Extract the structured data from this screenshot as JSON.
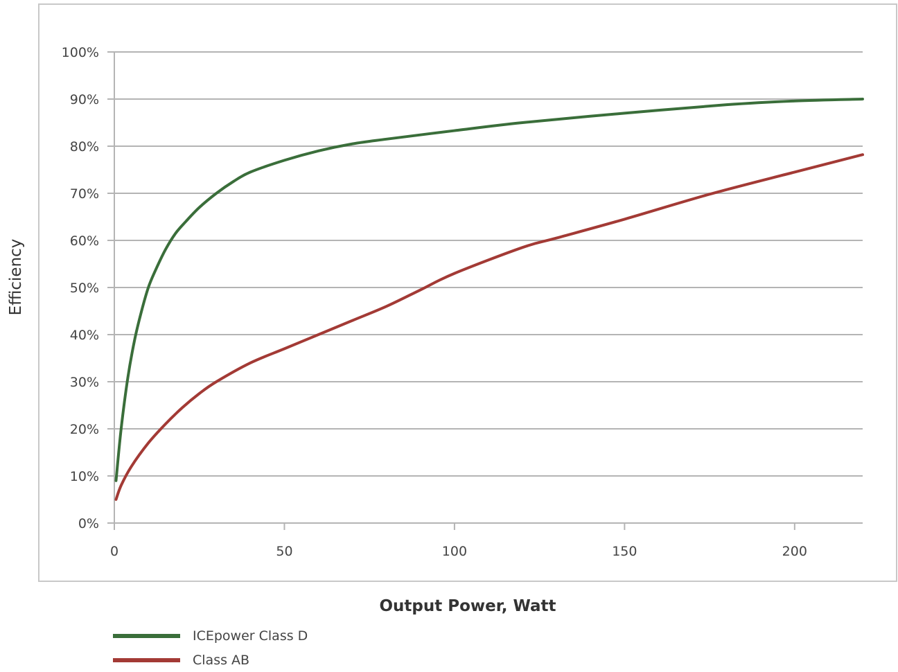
{
  "chart_data": {
    "type": "line",
    "xlabel": "Output Power, Watt",
    "ylabel": "Efficiency",
    "xlim": [
      0,
      220
    ],
    "ylim": [
      0,
      100
    ],
    "x_ticks": [
      0,
      50,
      100,
      150,
      200
    ],
    "y_ticks": [
      0,
      10,
      20,
      30,
      40,
      50,
      60,
      70,
      80,
      90,
      100
    ],
    "y_tick_suffix": "%",
    "grid": "horizontal",
    "legend_position": "bottom-left",
    "series": [
      {
        "name": "ICEpower Class D",
        "color": "#3a6e3a",
        "x": [
          0.5,
          2,
          4,
          6,
          8,
          10,
          12,
          15,
          18,
          21,
          25,
          30,
          35,
          40,
          50,
          60,
          70,
          80,
          100,
          120,
          150,
          180,
          200,
          220
        ],
        "y": [
          9,
          20,
          31,
          39,
          45,
          50,
          53.5,
          58,
          61.5,
          64,
          67,
          70,
          72.5,
          74.5,
          77,
          79,
          80.5,
          81.5,
          83.3,
          85,
          87,
          88.8,
          89.6,
          90
        ]
      },
      {
        "name": "Class AB",
        "color": "#a33a35",
        "x": [
          0.5,
          2,
          5,
          10,
          15,
          20,
          25,
          30,
          40,
          50,
          60,
          70,
          80,
          90,
          100,
          120,
          130,
          150,
          175,
          200,
          220
        ],
        "y": [
          5,
          8,
          12,
          17,
          21,
          24.5,
          27.5,
          30,
          34,
          37,
          40,
          43,
          46,
          49.5,
          53,
          58.5,
          60.5,
          64.5,
          69.8,
          74.5,
          78.2
        ]
      }
    ]
  }
}
